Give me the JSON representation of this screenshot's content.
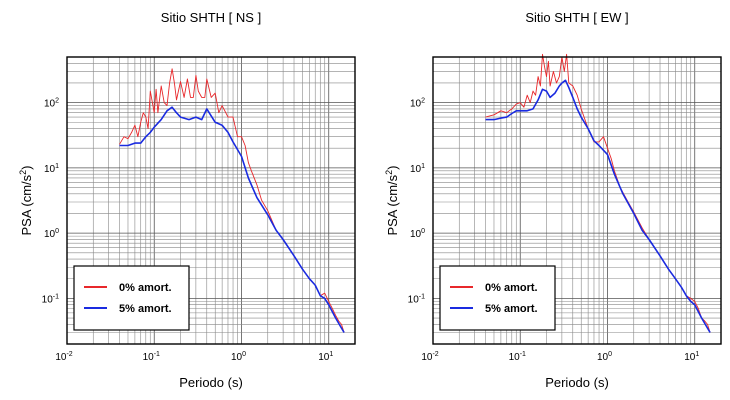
{
  "chart_data": [
    {
      "type": "line",
      "title": "Sitio SHTH [ NS ]",
      "xlabel": "Periodo (s)",
      "ylabel_text": "PSA (cm/s",
      "ylabel_sup": "2",
      "ylabel_close": ")",
      "x_scale": "log",
      "y_scale": "log",
      "xlim": [
        0.01,
        20
      ],
      "ylim": [
        0.02,
        500
      ],
      "grid": true,
      "legend_position": "bottom-left",
      "x_ticks": [
        {
          "base": "10",
          "exp": "-2",
          "value": 0.01
        },
        {
          "base": "10",
          "exp": "-1",
          "value": 0.1
        },
        {
          "base": "10",
          "exp": "0",
          "value": 1
        },
        {
          "base": "10",
          "exp": "1",
          "value": 10
        }
      ],
      "y_ticks": [
        {
          "base": "10",
          "exp": "-1",
          "value": 0.1
        },
        {
          "base": "10",
          "exp": "0",
          "value": 1
        },
        {
          "base": "10",
          "exp": "1",
          "value": 10
        },
        {
          "base": "10",
          "exp": "2",
          "value": 100
        }
      ],
      "series": [
        {
          "name": "0% amort.",
          "color": "#e8282b",
          "x": [
            0.04,
            0.045,
            0.05,
            0.055,
            0.06,
            0.065,
            0.07,
            0.075,
            0.08,
            0.085,
            0.09,
            0.1,
            0.105,
            0.11,
            0.12,
            0.13,
            0.14,
            0.15,
            0.16,
            0.17,
            0.18,
            0.2,
            0.22,
            0.24,
            0.26,
            0.28,
            0.3,
            0.32,
            0.35,
            0.38,
            0.4,
            0.45,
            0.5,
            0.55,
            0.6,
            0.7,
            0.8,
            0.9,
            1.0,
            1.1,
            1.2,
            1.3,
            1.5,
            1.7,
            2.0,
            2.5,
            3.0,
            4.0,
            5.0,
            6.0,
            7.0,
            8.0,
            9.0,
            10.0,
            11.0,
            12.0,
            13.0,
            14.0,
            15.0
          ],
          "y": [
            23,
            30,
            28,
            35,
            45,
            30,
            50,
            70,
            60,
            40,
            150,
            70,
            160,
            70,
            180,
            100,
            90,
            200,
            330,
            200,
            110,
            210,
            120,
            230,
            120,
            120,
            260,
            150,
            120,
            120,
            230,
            120,
            140,
            70,
            90,
            60,
            60,
            30,
            30,
            22,
            12,
            9,
            5.5,
            3.2,
            2.2,
            1.1,
            0.8,
            0.45,
            0.28,
            0.2,
            0.16,
            0.11,
            0.12,
            0.09,
            0.07,
            0.055,
            0.045,
            0.04,
            0.03
          ]
        },
        {
          "name": "5% amort.",
          "color": "#1a2be0",
          "x": [
            0.04,
            0.05,
            0.06,
            0.07,
            0.08,
            0.09,
            0.1,
            0.12,
            0.14,
            0.16,
            0.18,
            0.2,
            0.25,
            0.3,
            0.35,
            0.4,
            0.5,
            0.6,
            0.7,
            0.8,
            1.0,
            1.2,
            1.5,
            2.0,
            2.5,
            3.0,
            4.0,
            5.0,
            6.0,
            7.0,
            8.0,
            9.0,
            10.0,
            12.0,
            14.0,
            15.0
          ],
          "y": [
            22,
            22,
            24,
            24,
            30,
            35,
            42,
            55,
            75,
            85,
            70,
            60,
            55,
            60,
            55,
            80,
            50,
            45,
            35,
            25,
            15,
            7,
            3.5,
            1.9,
            1.1,
            0.8,
            0.45,
            0.28,
            0.2,
            0.16,
            0.11,
            0.1,
            0.08,
            0.05,
            0.035,
            0.03
          ]
        }
      ]
    },
    {
      "type": "line",
      "title": "Sitio SHTH [ EW ]",
      "xlabel": "Periodo (s)",
      "ylabel_text": "PSA (cm/s",
      "ylabel_sup": "2",
      "ylabel_close": ")",
      "x_scale": "log",
      "y_scale": "log",
      "xlim": [
        0.01,
        20
      ],
      "ylim": [
        0.02,
        500
      ],
      "grid": true,
      "legend_position": "bottom-left",
      "x_ticks": [
        {
          "base": "10",
          "exp": "-2",
          "value": 0.01
        },
        {
          "base": "10",
          "exp": "-1",
          "value": 0.1
        },
        {
          "base": "10",
          "exp": "0",
          "value": 1
        },
        {
          "base": "10",
          "exp": "1",
          "value": 10
        }
      ],
      "y_ticks": [
        {
          "base": "10",
          "exp": "-1",
          "value": 0.1
        },
        {
          "base": "10",
          "exp": "0",
          "value": 1
        },
        {
          "base": "10",
          "exp": "1",
          "value": 10
        },
        {
          "base": "10",
          "exp": "2",
          "value": 100
        }
      ],
      "series": [
        {
          "name": "0% amort.",
          "color": "#e8282b",
          "x": [
            0.04,
            0.05,
            0.06,
            0.07,
            0.08,
            0.09,
            0.1,
            0.11,
            0.12,
            0.13,
            0.14,
            0.15,
            0.16,
            0.17,
            0.18,
            0.19,
            0.2,
            0.21,
            0.22,
            0.24,
            0.26,
            0.28,
            0.3,
            0.32,
            0.34,
            0.36,
            0.4,
            0.45,
            0.5,
            0.6,
            0.7,
            0.8,
            0.9,
            1.0,
            1.1,
            1.2,
            1.4,
            1.7,
            2.0,
            2.5,
            3.0,
            4.0,
            5.0,
            6.0,
            7.0,
            8.0,
            9.0,
            10.0,
            11.0,
            12.0,
            13.0,
            14.0,
            15.0
          ],
          "y": [
            60,
            65,
            75,
            70,
            80,
            95,
            100,
            85,
            130,
            100,
            150,
            130,
            250,
            180,
            550,
            350,
            250,
            430,
            180,
            300,
            200,
            250,
            500,
            300,
            550,
            200,
            180,
            130,
            80,
            40,
            25,
            25,
            30,
            20,
            14,
            9,
            5,
            3.1,
            2.1,
            1.2,
            0.8,
            0.45,
            0.28,
            0.2,
            0.15,
            0.11,
            0.1,
            0.09,
            0.07,
            0.05,
            0.045,
            0.04,
            0.03
          ]
        },
        {
          "name": "5% amort.",
          "color": "#1a2be0",
          "x": [
            0.04,
            0.05,
            0.06,
            0.07,
            0.08,
            0.09,
            0.1,
            0.12,
            0.14,
            0.16,
            0.18,
            0.2,
            0.22,
            0.25,
            0.28,
            0.3,
            0.33,
            0.36,
            0.4,
            0.45,
            0.5,
            0.6,
            0.7,
            0.8,
            1.0,
            1.2,
            1.5,
            2.0,
            2.5,
            3.0,
            4.0,
            5.0,
            6.0,
            7.0,
            8.0,
            9.0,
            10.0,
            12.0,
            14.0,
            15.0
          ],
          "y": [
            55,
            55,
            58,
            60,
            68,
            75,
            75,
            75,
            80,
            110,
            160,
            150,
            120,
            140,
            180,
            200,
            220,
            170,
            120,
            80,
            60,
            40,
            26,
            22,
            16,
            8,
            4,
            2,
            1.1,
            0.8,
            0.45,
            0.28,
            0.2,
            0.15,
            0.11,
            0.09,
            0.08,
            0.05,
            0.035,
            0.03
          ]
        }
      ]
    }
  ]
}
